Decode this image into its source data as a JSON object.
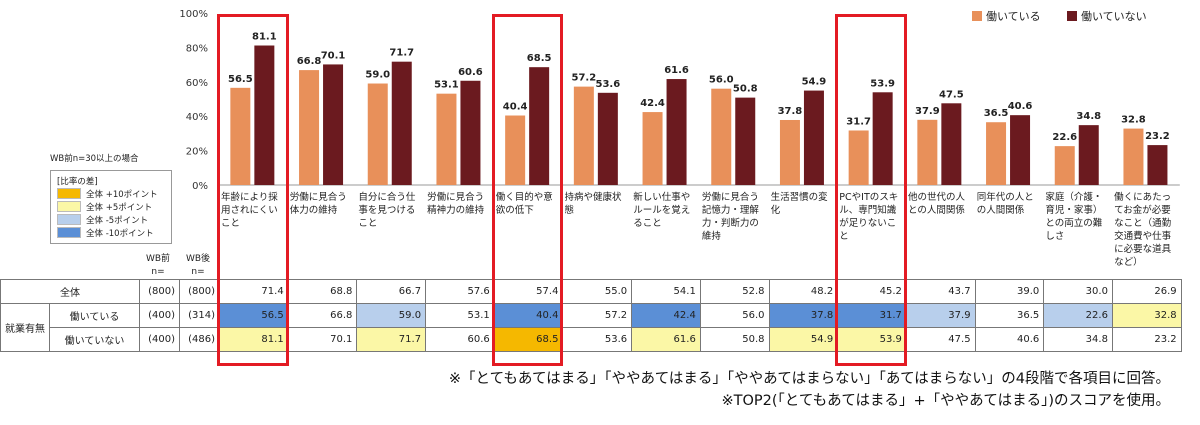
{
  "chart_data": {
    "type": "bar",
    "ylim": [
      0,
      100
    ],
    "yticks": [
      "0%",
      "20%",
      "40%",
      "60%",
      "80%",
      "100%"
    ],
    "legend_position": "top-right",
    "categories": [
      "年齢により採用されにくいこと",
      "労働に見合う体力の維持",
      "自分に合う仕事を見つけること",
      "労働に見合う精神力の維持",
      "働く目的や意欲の低下",
      "持病や健康状態",
      "新しい仕事やルールを覚えること",
      "労働に見合う記憶力・理解力・判断力の維持",
      "生活習慣の変化",
      "PCやITのスキル、専門知識が足りないこと",
      "他の世代の人との人間関係",
      "同年代の人との人間関係",
      "家庭（介護・育児・家事）との両立の難しさ",
      "働くにあたってお金が必要なこと（通勤交通費や仕事に必要な道具など）"
    ],
    "series": [
      {
        "name": "働いている",
        "color": "#e8905a",
        "values": [
          56.5,
          66.8,
          59.0,
          53.1,
          40.4,
          57.2,
          42.4,
          56.0,
          37.8,
          31.7,
          37.9,
          36.5,
          22.6,
          32.8
        ]
      },
      {
        "name": "働いていない",
        "color": "#6b1a1f",
        "values": [
          81.1,
          70.1,
          71.7,
          60.6,
          68.5,
          53.6,
          61.6,
          50.8,
          54.9,
          53.9,
          47.5,
          40.6,
          34.8,
          23.2
        ]
      }
    ],
    "highlighted_categories": [
      0,
      4,
      9
    ]
  },
  "grid_legend": {
    "title": "WB前n=30以上の場合",
    "header": "[比率の差]",
    "items": [
      {
        "label": "全体 +10ポイント",
        "color": "#f5b800"
      },
      {
        "label": "全体 +5ポイント",
        "color": "#fbf7a6"
      },
      {
        "label": "全体 -5ポイント",
        "color": "#b8cfec"
      },
      {
        "label": "全体 -10ポイント",
        "color": "#5b8fd6"
      }
    ]
  },
  "table": {
    "col_wb_before": "WB前",
    "col_n": "n=",
    "col_wb_after": "WB後",
    "group_label": "就業有無",
    "rows": [
      {
        "label": "全体",
        "n_before": "(800)",
        "n_after": "(800)",
        "values": [
          71.4,
          68.8,
          66.7,
          57.6,
          57.4,
          55.0,
          54.1,
          52.8,
          48.2,
          45.2,
          43.7,
          39.0,
          30.0,
          26.9
        ]
      },
      {
        "label": "働いている",
        "n_before": "(400)",
        "n_after": "(314)",
        "values": [
          56.5,
          66.8,
          59.0,
          53.1,
          40.4,
          57.2,
          42.4,
          56.0,
          37.8,
          31.7,
          37.9,
          36.5,
          22.6,
          32.8
        ]
      },
      {
        "label": "働いていない",
        "n_before": "(400)",
        "n_after": "(486)",
        "values": [
          81.1,
          70.1,
          71.7,
          60.6,
          68.5,
          53.6,
          61.6,
          50.8,
          54.9,
          53.9,
          47.5,
          40.6,
          34.8,
          23.2
        ]
      }
    ],
    "cell_colors": [
      [
        "",
        "",
        "",
        "",
        "",
        "",
        "",
        "",
        "",
        "",
        "",
        "",
        "",
        ""
      ],
      [
        "#5b8fd6",
        "",
        "#b8cfec",
        "",
        "#5b8fd6",
        "",
        "#5b8fd6",
        "",
        "#5b8fd6",
        "#5b8fd6",
        "#b8cfec",
        "",
        "#b8cfec",
        "#fbf7a6"
      ],
      [
        "#fbf7a6",
        "",
        "#fbf7a6",
        "",
        "#f5b800",
        "",
        "#fbf7a6",
        "",
        "#fbf7a6",
        "#fbf7a6",
        "",
        "",
        "",
        ""
      ]
    ]
  },
  "notes": [
    "※「とてもあてはまる」「ややあてはまる」「ややあてはまらない」「あてはまらない」の4段階で各項目に回答。",
    "※TOP2(「とてもあてはまる」+「ややあてはまる」)のスコアを使用。"
  ]
}
